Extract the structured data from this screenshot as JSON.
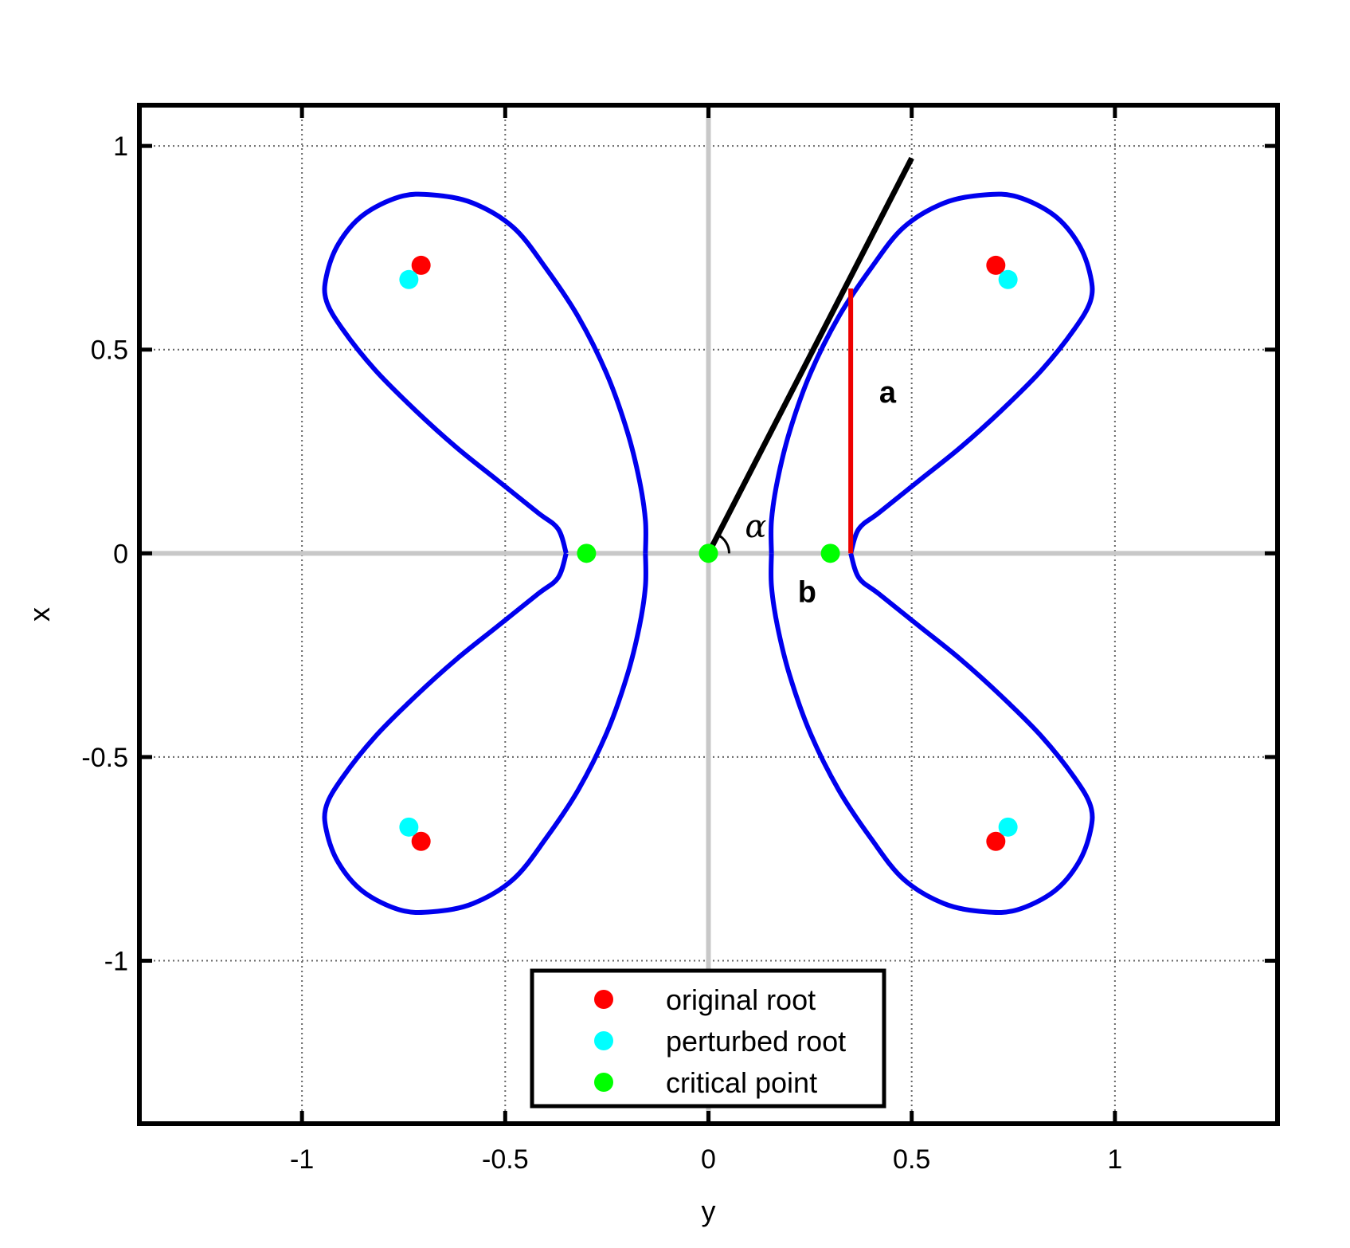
{
  "chart_data": {
    "type": "scatter",
    "xlabel": "y",
    "ylabel": "x",
    "xlim": [
      -1.4,
      1.4
    ],
    "ylim": [
      -1.4,
      1.1
    ],
    "xticks": [
      -1,
      -0.5,
      0,
      0.5,
      1
    ],
    "xtick_labels": [
      "-1",
      "-0.5",
      "0",
      "0.5",
      "1"
    ],
    "yticks": [
      -1,
      -0.5,
      0,
      0.5,
      1
    ],
    "ytick_labels": [
      "-1",
      "-0.5",
      "0",
      "0.5",
      "1"
    ],
    "grid": true,
    "legend_position": "bottom-center",
    "curve": {
      "type": "lemniscate-of-four-petals",
      "description_equation": "|z^4 + 0.25| contour",
      "color": "#0000ee",
      "lobe_polylines": [
        [
          [
            0.35,
            0.0
          ],
          [
            0.37,
            0.06
          ],
          [
            0.42,
            0.1
          ],
          [
            0.52,
            0.18
          ],
          [
            0.62,
            0.26
          ],
          [
            0.72,
            0.35
          ],
          [
            0.82,
            0.45
          ],
          [
            0.9,
            0.55
          ],
          [
            0.94,
            0.62
          ],
          [
            0.94,
            0.68
          ],
          [
            0.91,
            0.76
          ],
          [
            0.85,
            0.83
          ],
          [
            0.76,
            0.875
          ],
          [
            0.68,
            0.88
          ],
          [
            0.58,
            0.86
          ],
          [
            0.48,
            0.8
          ],
          [
            0.4,
            0.7
          ],
          [
            0.32,
            0.58
          ],
          [
            0.25,
            0.44
          ],
          [
            0.2,
            0.3
          ],
          [
            0.17,
            0.18
          ],
          [
            0.155,
            0.08
          ],
          [
            0.155,
            0.0
          ]
        ]
      ]
    },
    "tangent_line": {
      "color": "#000000",
      "x": [
        0,
        0.5
      ],
      "y": [
        0,
        0.97
      ]
    },
    "vertical_segment": {
      "color": "#ee0000",
      "x": [
        0.35,
        0.35
      ],
      "y": [
        0,
        0.65
      ]
    },
    "series": [
      {
        "name": "original root",
        "color": "#ff0000",
        "points": [
          [
            0.707,
            0.707
          ],
          [
            -0.707,
            0.707
          ],
          [
            0.707,
            -0.707
          ],
          [
            -0.707,
            -0.707
          ]
        ]
      },
      {
        "name": "perturbed root",
        "color": "#00ffff",
        "points": [
          [
            0.737,
            0.672
          ],
          [
            -0.737,
            0.672
          ],
          [
            0.737,
            -0.672
          ],
          [
            -0.737,
            -0.672
          ]
        ]
      },
      {
        "name": "critical point",
        "color": "#00ff00",
        "points": [
          [
            -0.3,
            0
          ],
          [
            0,
            0
          ],
          [
            0.3,
            0
          ]
        ]
      }
    ],
    "annotations": [
      {
        "text": "a",
        "x": 0.42,
        "y": 0.37
      },
      {
        "text": "b",
        "x": 0.22,
        "y": -0.12
      },
      {
        "text": "α",
        "x": 0.09,
        "y": 0.04
      }
    ]
  }
}
